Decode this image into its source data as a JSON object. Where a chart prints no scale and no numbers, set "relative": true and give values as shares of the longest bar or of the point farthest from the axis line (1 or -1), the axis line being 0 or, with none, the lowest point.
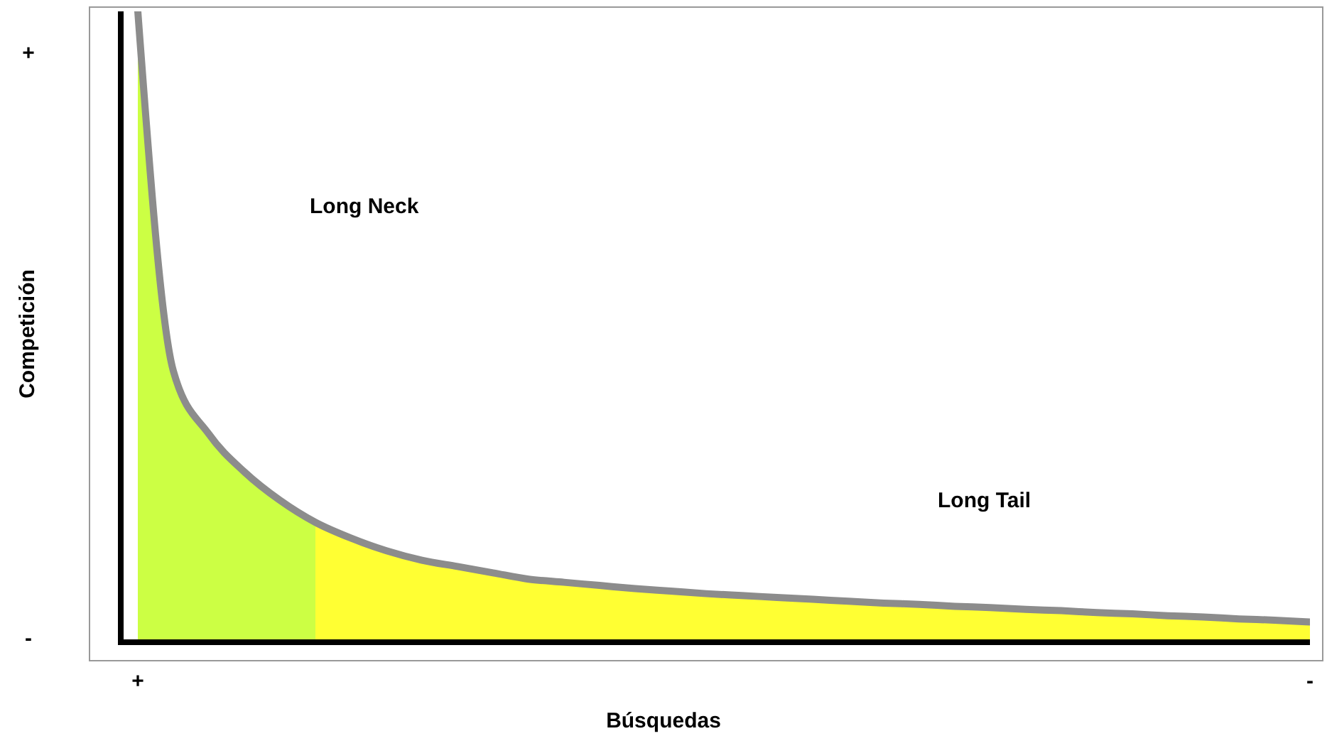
{
  "chart_data": {
    "type": "area",
    "relative": true,
    "xlabel": "Búsquedas",
    "ylabel": "Competición",
    "categories": [
      "+",
      null,
      null,
      null,
      null,
      null,
      null,
      null,
      null,
      null,
      null,
      null,
      null,
      null,
      null,
      null,
      null,
      null,
      null,
      null,
      null,
      null,
      null,
      null,
      null,
      null,
      null,
      null,
      null,
      null,
      null,
      null,
      null,
      "-"
    ],
    "series": [
      {
        "color": "#ccff44",
        "values": [
          1.0,
          0.43,
          0.33,
          0.27,
          0.225,
          0.19,
          null,
          null,
          null,
          null,
          null,
          null,
          null,
          null,
          null,
          null,
          null,
          null,
          null,
          null,
          null,
          null,
          null,
          null,
          null,
          null,
          null,
          null,
          null,
          null,
          null,
          null,
          null,
          null
        ]
      },
      {
        "color": "#ffff33",
        "values": [
          null,
          null,
          null,
          null,
          null,
          0.19,
          0.165,
          0.145,
          0.13,
          0.12,
          0.11,
          0.1,
          0.095,
          0.09,
          0.085,
          0.081,
          0.077,
          0.074,
          0.071,
          0.068,
          0.065,
          0.062,
          0.06,
          0.057,
          0.055,
          0.052,
          0.05,
          0.047,
          0.045,
          0.042,
          0.04,
          0.037,
          0.035,
          0.032
        ]
      },
      {
        "type": "line",
        "color": "#8c8c8c",
        "values": [
          1.0,
          0.43,
          0.33,
          0.27,
          0.225,
          0.19,
          0.165,
          0.145,
          0.13,
          0.12,
          0.11,
          0.1,
          0.095,
          0.09,
          0.085,
          0.081,
          0.077,
          0.074,
          0.071,
          0.068,
          0.065,
          0.062,
          0.06,
          0.057,
          0.055,
          0.052,
          0.05,
          0.047,
          0.045,
          0.042,
          0.04,
          0.037,
          0.035,
          0.032
        ]
      }
    ],
    "annotations": [
      "Long Neck",
      "Long Tail",
      "+",
      "-"
    ]
  }
}
